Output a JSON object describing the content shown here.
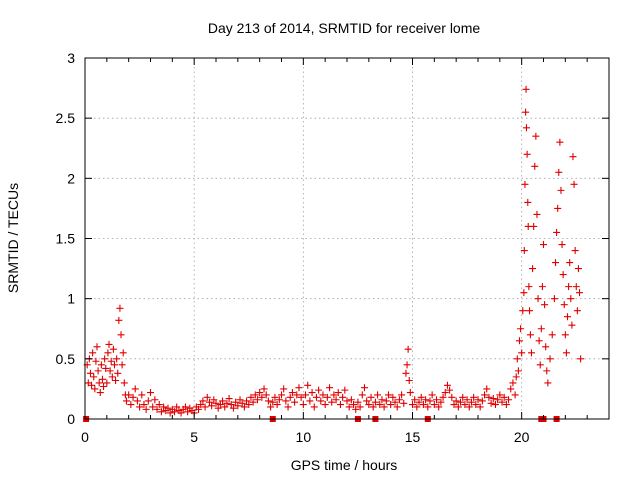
{
  "chart_data": {
    "type": "scatter",
    "title": "Day 213 of 2014, SRMTID for receiver lome",
    "xlabel": "GPS time / hours",
    "ylabel": "SRMTID / TECUs",
    "xlim": [
      0,
      24
    ],
    "ylim": [
      0,
      3
    ],
    "xticks": [
      0,
      5,
      10,
      15,
      20
    ],
    "xtick_labels": [
      "0",
      "5",
      "10",
      "15",
      "20"
    ],
    "xminor": [
      1,
      2,
      3,
      4,
      6,
      7,
      8,
      9,
      11,
      12,
      13,
      14,
      16,
      17,
      18,
      19,
      21,
      22,
      23
    ],
    "yticks": [
      0,
      0.5,
      1,
      1.5,
      2,
      2.5,
      3
    ],
    "ytick_labels": [
      "0",
      "0.5",
      "1",
      "1.5",
      "2",
      "2.5",
      "3"
    ],
    "grid": true,
    "marker": "plus",
    "color": "#e00000",
    "series": [
      {
        "name": "SRMTID",
        "points": [
          [
            0.1,
            0.45
          ],
          [
            0.15,
            0.3
          ],
          [
            0.2,
            0.5
          ],
          [
            0.25,
            0.38
          ],
          [
            0.3,
            0.28
          ],
          [
            0.35,
            0.55
          ],
          [
            0.4,
            0.35
          ],
          [
            0.45,
            0.25
          ],
          [
            0.5,
            0.48
          ],
          [
            0.55,
            0.6
          ],
          [
            0.6,
            0.4
          ],
          [
            0.65,
            0.3
          ],
          [
            0.7,
            0.22
          ],
          [
            0.75,
            0.45
          ],
          [
            0.8,
            0.33
          ],
          [
            0.85,
            0.27
          ],
          [
            0.9,
            0.5
          ],
          [
            0.95,
            0.42
          ],
          [
            1.0,
            0.3
          ],
          [
            1.05,
            0.55
          ],
          [
            1.1,
            0.62
          ],
          [
            1.15,
            0.4
          ],
          [
            1.2,
            0.48
          ],
          [
            1.25,
            0.35
          ],
          [
            1.3,
            0.58
          ],
          [
            1.35,
            0.45
          ],
          [
            1.4,
            0.32
          ],
          [
            1.45,
            0.5
          ],
          [
            1.5,
            0.38
          ],
          [
            1.55,
            0.82
          ],
          [
            1.6,
            0.92
          ],
          [
            1.65,
            0.7
          ],
          [
            1.7,
            0.45
          ],
          [
            1.75,
            0.55
          ],
          [
            1.8,
            0.3
          ],
          [
            1.85,
            0.2
          ],
          [
            1.9,
            0.15
          ],
          [
            2.0,
            0.2
          ],
          [
            2.1,
            0.12
          ],
          [
            2.2,
            0.18
          ],
          [
            2.3,
            0.25
          ],
          [
            2.4,
            0.15
          ],
          [
            2.5,
            0.1
          ],
          [
            2.6,
            0.2
          ],
          [
            2.7,
            0.12
          ],
          [
            2.8,
            0.08
          ],
          [
            2.9,
            0.15
          ],
          [
            3.0,
            0.22
          ],
          [
            3.1,
            0.1
          ],
          [
            3.2,
            0.16
          ],
          [
            3.3,
            0.08
          ],
          [
            3.4,
            0.12
          ],
          [
            3.5,
            0.06
          ],
          [
            3.6,
            0.1
          ],
          [
            3.7,
            0.07
          ],
          [
            3.8,
            0.09
          ],
          [
            3.9,
            0.05
          ],
          [
            4.0,
            0.08
          ],
          [
            4.1,
            0.06
          ],
          [
            4.2,
            0.1
          ],
          [
            4.3,
            0.07
          ],
          [
            4.4,
            0.05
          ],
          [
            4.5,
            0.08
          ],
          [
            4.6,
            0.1
          ],
          [
            4.7,
            0.06
          ],
          [
            4.8,
            0.09
          ],
          [
            4.9,
            0.07
          ],
          [
            5.0,
            0.05
          ],
          [
            5.1,
            0.1
          ],
          [
            5.2,
            0.08
          ],
          [
            5.3,
            0.12
          ],
          [
            5.4,
            0.15
          ],
          [
            5.5,
            0.1
          ],
          [
            5.6,
            0.18
          ],
          [
            5.7,
            0.14
          ],
          [
            5.8,
            0.11
          ],
          [
            5.9,
            0.16
          ],
          [
            6.0,
            0.13
          ],
          [
            6.1,
            0.09
          ],
          [
            6.2,
            0.12
          ],
          [
            6.3,
            0.15
          ],
          [
            6.4,
            0.1
          ],
          [
            6.5,
            0.13
          ],
          [
            6.6,
            0.17
          ],
          [
            6.7,
            0.12
          ],
          [
            6.8,
            0.09
          ],
          [
            6.9,
            0.14
          ],
          [
            7.0,
            0.11
          ],
          [
            7.1,
            0.16
          ],
          [
            7.2,
            0.13
          ],
          [
            7.3,
            0.1
          ],
          [
            7.4,
            0.15
          ],
          [
            7.5,
            0.12
          ],
          [
            7.6,
            0.18
          ],
          [
            7.7,
            0.14
          ],
          [
            7.8,
            0.2
          ],
          [
            7.9,
            0.16
          ],
          [
            8.0,
            0.22
          ],
          [
            8.1,
            0.18
          ],
          [
            8.2,
            0.25
          ],
          [
            8.3,
            0.2
          ],
          [
            8.4,
            0.15
          ],
          [
            8.5,
            0.1
          ],
          [
            8.6,
            0.14
          ],
          [
            8.7,
            0.18
          ],
          [
            8.8,
            0.12
          ],
          [
            8.9,
            0.16
          ],
          [
            9.0,
            0.2
          ],
          [
            9.1,
            0.25
          ],
          [
            9.2,
            0.15
          ],
          [
            9.3,
            0.1
          ],
          [
            9.4,
            0.18
          ],
          [
            9.5,
            0.22
          ],
          [
            9.6,
            0.14
          ],
          [
            9.7,
            0.2
          ],
          [
            9.8,
            0.26
          ],
          [
            9.9,
            0.18
          ],
          [
            10.0,
            0.12
          ],
          [
            10.1,
            0.2
          ],
          [
            10.2,
            0.28
          ],
          [
            10.3,
            0.15
          ],
          [
            10.4,
            0.22
          ],
          [
            10.5,
            0.1
          ],
          [
            10.6,
            0.18
          ],
          [
            10.7,
            0.24
          ],
          [
            10.8,
            0.15
          ],
          [
            10.9,
            0.2
          ],
          [
            11.0,
            0.12
          ],
          [
            11.1,
            0.18
          ],
          [
            11.2,
            0.26
          ],
          [
            11.3,
            0.14
          ],
          [
            11.4,
            0.2
          ],
          [
            11.5,
            0.16
          ],
          [
            11.6,
            0.22
          ],
          [
            11.7,
            0.12
          ],
          [
            11.8,
            0.18
          ],
          [
            11.9,
            0.24
          ],
          [
            12.0,
            0.15
          ],
          [
            12.1,
            0.1
          ],
          [
            12.2,
            0.16
          ],
          [
            12.3,
            0.12
          ],
          [
            12.4,
            0.08
          ],
          [
            12.5,
            0.14
          ],
          [
            12.6,
            0.1
          ],
          [
            12.7,
            0.2
          ],
          [
            12.8,
            0.26
          ],
          [
            12.9,
            0.15
          ],
          [
            13.0,
            0.12
          ],
          [
            13.1,
            0.18
          ],
          [
            13.2,
            0.1
          ],
          [
            13.3,
            0.14
          ],
          [
            13.4,
            0.2
          ],
          [
            13.5,
            0.12
          ],
          [
            13.6,
            0.16
          ],
          [
            13.7,
            0.1
          ],
          [
            13.8,
            0.15
          ],
          [
            13.9,
            0.2
          ],
          [
            14.0,
            0.12
          ],
          [
            14.1,
            0.18
          ],
          [
            14.2,
            0.14
          ],
          [
            14.3,
            0.1
          ],
          [
            14.4,
            0.16
          ],
          [
            14.5,
            0.2
          ],
          [
            14.6,
            0.13
          ],
          [
            14.7,
            0.38
          ],
          [
            14.75,
            0.45
          ],
          [
            14.8,
            0.58
          ],
          [
            14.85,
            0.32
          ],
          [
            14.9,
            0.22
          ],
          [
            15.0,
            0.12
          ],
          [
            15.1,
            0.16
          ],
          [
            15.2,
            0.1
          ],
          [
            15.3,
            0.14
          ],
          [
            15.4,
            0.18
          ],
          [
            15.5,
            0.12
          ],
          [
            15.6,
            0.16
          ],
          [
            15.7,
            0.1
          ],
          [
            15.8,
            0.15
          ],
          [
            15.9,
            0.2
          ],
          [
            16.0,
            0.12
          ],
          [
            16.1,
            0.16
          ],
          [
            16.2,
            0.1
          ],
          [
            16.3,
            0.14
          ],
          [
            16.4,
            0.18
          ],
          [
            16.5,
            0.22
          ],
          [
            16.6,
            0.28
          ],
          [
            16.7,
            0.24
          ],
          [
            16.8,
            0.18
          ],
          [
            16.9,
            0.12
          ],
          [
            17.0,
            0.15
          ],
          [
            17.1,
            0.1
          ],
          [
            17.2,
            0.14
          ],
          [
            17.3,
            0.18
          ],
          [
            17.4,
            0.12
          ],
          [
            17.5,
            0.16
          ],
          [
            17.6,
            0.1
          ],
          [
            17.7,
            0.14
          ],
          [
            17.8,
            0.18
          ],
          [
            17.9,
            0.12
          ],
          [
            18.0,
            0.16
          ],
          [
            18.1,
            0.1
          ],
          [
            18.2,
            0.15
          ],
          [
            18.3,
            0.2
          ],
          [
            18.4,
            0.25
          ],
          [
            18.5,
            0.18
          ],
          [
            18.6,
            0.13
          ],
          [
            18.7,
            0.17
          ],
          [
            18.8,
            0.12
          ],
          [
            18.9,
            0.16
          ],
          [
            19.0,
            0.2
          ],
          [
            19.1,
            0.14
          ],
          [
            19.2,
            0.18
          ],
          [
            19.3,
            0.12
          ],
          [
            19.4,
            0.16
          ],
          [
            19.5,
            0.25
          ],
          [
            19.6,
            0.3
          ],
          [
            19.7,
            0.2
          ],
          [
            19.75,
            0.35
          ],
          [
            19.8,
            0.5
          ],
          [
            19.85,
            0.4
          ],
          [
            19.9,
            0.65
          ],
          [
            19.95,
            0.75
          ],
          [
            20.0,
            0.55
          ],
          [
            20.05,
            0.9
          ],
          [
            20.1,
            1.05
          ],
          [
            20.12,
            1.4
          ],
          [
            20.15,
            1.95
          ],
          [
            20.18,
            2.55
          ],
          [
            20.2,
            2.74
          ],
          [
            20.22,
            2.42
          ],
          [
            20.25,
            2.2
          ],
          [
            20.28,
            1.8
          ],
          [
            20.3,
            1.6
          ],
          [
            20.33,
            1.1
          ],
          [
            20.36,
            0.9
          ],
          [
            20.4,
            0.7
          ],
          [
            20.45,
            0.55
          ],
          [
            20.5,
            1.25
          ],
          [
            20.55,
            1.6
          ],
          [
            20.6,
            2.1
          ],
          [
            20.65,
            2.35
          ],
          [
            20.7,
            1.7
          ],
          [
            20.75,
            1.0
          ],
          [
            20.8,
            0.65
          ],
          [
            20.85,
            0.45
          ],
          [
            20.9,
            0.75
          ],
          [
            20.95,
            1.1
          ],
          [
            21.0,
            1.45
          ],
          [
            21.05,
            0.95
          ],
          [
            21.1,
            0.6
          ],
          [
            21.15,
            0.4
          ],
          [
            21.2,
            0.3
          ],
          [
            21.3,
            0.5
          ],
          [
            21.4,
            0.7
          ],
          [
            21.5,
            1.0
          ],
          [
            21.55,
            1.3
          ],
          [
            21.6,
            1.55
          ],
          [
            21.65,
            1.75
          ],
          [
            21.7,
            2.05
          ],
          [
            21.75,
            2.3
          ],
          [
            21.8,
            1.9
          ],
          [
            21.85,
            1.45
          ],
          [
            21.9,
            1.2
          ],
          [
            21.95,
            0.95
          ],
          [
            22.0,
            0.7
          ],
          [
            22.05,
            0.55
          ],
          [
            22.1,
            0.85
          ],
          [
            22.15,
            1.1
          ],
          [
            22.2,
            1.3
          ],
          [
            22.25,
            1.0
          ],
          [
            22.3,
            0.78
          ],
          [
            22.35,
            2.18
          ],
          [
            22.4,
            1.95
          ],
          [
            22.45,
            1.4
          ],
          [
            22.5,
            1.1
          ],
          [
            22.55,
            0.9
          ],
          [
            22.6,
            1.25
          ],
          [
            22.65,
            1.05
          ],
          [
            22.7,
            0.5
          ]
        ]
      }
    ],
    "zero_markers": [
      0.05,
      8.6,
      12.5,
      13.3,
      15.7,
      20.9,
      21.0,
      21.6
    ]
  }
}
